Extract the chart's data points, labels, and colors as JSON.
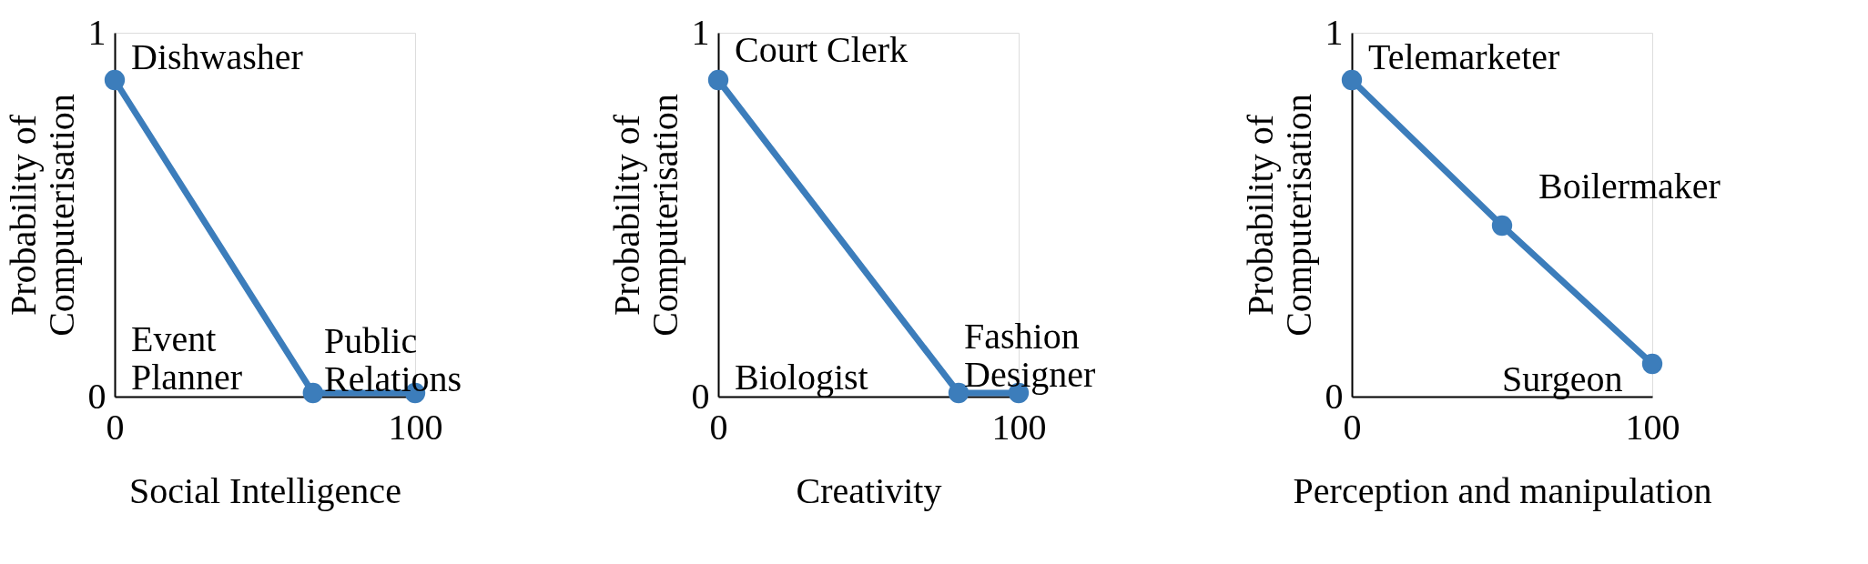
{
  "chart_data": [
    {
      "type": "line",
      "xlabel": "Social Intelligence",
      "ylabel": "Probability of\nComputerisation",
      "x": [
        0,
        66,
        100
      ],
      "series": [
        {
          "color": "#3c7dbb",
          "values": [
            0.87,
            0.01,
            0.01
          ]
        }
      ],
      "xlim": [
        0,
        100
      ],
      "ylim": [
        0,
        1
      ],
      "xticks": [
        0,
        100
      ],
      "yticks": [
        0,
        1
      ],
      "grid": false,
      "marker": "circle",
      "line_style": "solid",
      "annotations": [
        "Dishwasher",
        "Event\nPlanner",
        "Public\nRelations"
      ]
    },
    {
      "type": "line",
      "xlabel": "Creativity",
      "ylabel": "Probability of\nComputerisation",
      "x": [
        0,
        80,
        100
      ],
      "series": [
        {
          "color": "#3c7dbb",
          "values": [
            0.87,
            0.01,
            0.01
          ]
        }
      ],
      "xlim": [
        0,
        100
      ],
      "ylim": [
        0,
        1
      ],
      "xticks": [
        0,
        100
      ],
      "yticks": [
        0,
        1
      ],
      "grid": false,
      "marker": "circle",
      "line_style": "solid",
      "annotations": [
        "Court Clerk",
        "Biologist",
        "Fashion\nDesigner"
      ]
    },
    {
      "type": "line",
      "xlabel": "Perception and manipulation",
      "ylabel": "Probability of\nComputerisation",
      "x": [
        0,
        50,
        100
      ],
      "series": [
        {
          "color": "#3c7dbb",
          "values": [
            0.87,
            0.47,
            0.09
          ]
        }
      ],
      "xlim": [
        0,
        100
      ],
      "ylim": [
        0,
        1
      ],
      "xticks": [
        0,
        100
      ],
      "yticks": [
        0,
        1
      ],
      "grid": false,
      "marker": "circle",
      "line_style": "solid",
      "annotations": [
        "Telemarketer",
        "Boilermaker",
        "Surgeon"
      ]
    }
  ]
}
